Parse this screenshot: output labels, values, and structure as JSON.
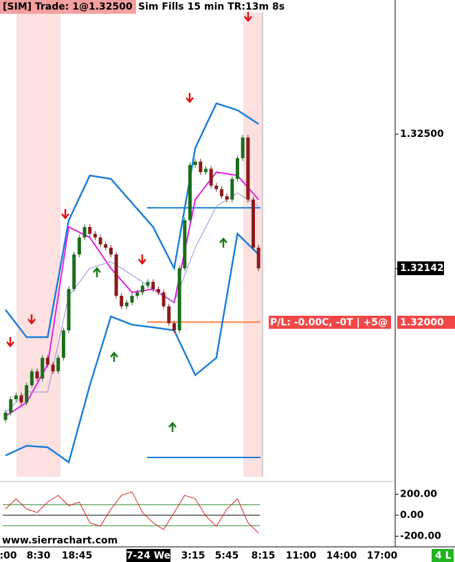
{
  "chart_data": {
    "type": "candlestick",
    "title": "[SIM]  Trade: 1@1.32500",
    "subtitle": "Sim Fills  15 min  TR:13m 8s",
    "watermark": "www.sierrachart.com",
    "status": "4 L",
    "x_labels": [
      ":00",
      "8:30",
      "18:45",
      "7-24 We",
      "3:15",
      "5:45",
      "8:15",
      "11:00",
      "14:00",
      "17:00"
    ],
    "open": [
      1.3174,
      1.31759,
      1.31795,
      1.31805,
      1.31786,
      1.31832,
      1.31869,
      1.3185,
      1.31905,
      1.31887,
      1.31869,
      1.31905,
      1.31978,
      1.32088,
      1.3218,
      1.32225,
      1.32253,
      1.32235,
      1.32225,
      1.32207,
      1.32198,
      1.3218,
      1.3207,
      1.32042,
      1.32052,
      1.3207,
      1.32079,
      1.32097,
      1.32107,
      1.32088,
      1.32079,
      1.32042,
      1.31997,
      1.31978,
      1.32143,
      1.32271,
      1.32418,
      1.32427,
      1.32399,
      1.32408,
      1.32363,
      1.32354,
      1.32335,
      1.32326,
      1.32381,
      1.32436,
      1.32491,
      1.32326,
      1.32198
    ],
    "close": [
      1.31759,
      1.31795,
      1.31805,
      1.31786,
      1.31832,
      1.31869,
      1.3185,
      1.31905,
      1.31887,
      1.31869,
      1.31905,
      1.31978,
      1.32088,
      1.3218,
      1.32225,
      1.32253,
      1.32235,
      1.32225,
      1.32207,
      1.32198,
      1.3218,
      1.3207,
      1.32042,
      1.32052,
      1.3207,
      1.32079,
      1.32097,
      1.32107,
      1.32088,
      1.32079,
      1.32042,
      1.31997,
      1.31978,
      1.32143,
      1.32271,
      1.32418,
      1.32427,
      1.32399,
      1.32408,
      1.32363,
      1.32354,
      1.32335,
      1.32326,
      1.32381,
      1.32436,
      1.32491,
      1.32326,
      1.32198,
      1.32143
    ],
    "up_color": "#1b6e1b",
    "down_color": "#8b1a1a",
    "ylim": [
      1.31585,
      1.32857
    ],
    "yticks": [
      {
        "value": 1.325,
        "label": "1.32500"
      }
    ],
    "last_price": {
      "value": 1.32142,
      "label": "1.32142"
    },
    "position_line": {
      "value": 1.32,
      "label": "1.32000",
      "text": "P/L: -0.00C, -0T | +5@",
      "color": "#ff7f3f"
    },
    "levels": [
      {
        "value": 1.32304,
        "color": "#1a7fd9"
      },
      {
        "value": 1.3164,
        "color": "#1a7fd9"
      }
    ],
    "lines": [
      {
        "color": "#1a7fd9",
        "width": 2.5,
        "x": [
          0,
          4,
          8,
          12,
          16,
          20,
          24,
          28,
          32,
          36,
          40,
          44,
          48
        ],
        "values": [
          1.32033,
          1.3196,
          1.3196,
          1.32271,
          1.3239,
          1.32381,
          1.32317,
          1.32253,
          1.32143,
          1.32463,
          1.32582,
          1.32564,
          1.32527
        ]
      },
      {
        "color": "#1a7fd9",
        "width": 2.5,
        "x": [
          0,
          4,
          8,
          12,
          16,
          20,
          24,
          28,
          32,
          36,
          40,
          44,
          48
        ],
        "values": [
          1.31645,
          1.31671,
          1.31667,
          1.31627,
          1.31832,
          1.32015,
          1.31993,
          1.31986,
          1.31978,
          1.31859,
          1.31905,
          1.32235,
          1.3218
        ]
      },
      {
        "color": "#e020e0",
        "width": 2,
        "x": [
          0,
          4,
          8,
          12,
          16,
          20,
          24,
          28,
          32,
          36,
          40,
          44,
          48
        ],
        "values": [
          1.3175,
          1.31786,
          1.31887,
          1.32253,
          1.32225,
          1.32143,
          1.32079,
          1.32088,
          1.32052,
          1.32326,
          1.32399,
          1.3239,
          1.32326
        ]
      },
      {
        "color": "#9a8ad8",
        "width": 1,
        "x": [
          0,
          4,
          8,
          12,
          16,
          20,
          24,
          28,
          32,
          36,
          40,
          44,
          48
        ],
        "values": [
          1.31759,
          1.31814,
          1.31814,
          1.3207,
          1.32143,
          1.32161,
          1.32125,
          1.32088,
          1.32052,
          1.32198,
          1.32308,
          1.32344,
          1.32308
        ]
      }
    ],
    "oscillator": {
      "ylim": [
        -269,
        289
      ],
      "yticks": [
        {
          "value": 200,
          "label": "200.00"
        },
        {
          "value": 0,
          "label": "0.00"
        },
        {
          "value": -200,
          "label": "-200.00"
        }
      ],
      "levels": [
        {
          "value": 100,
          "color": "#2e8b2e"
        },
        {
          "value": 0,
          "color": "#000000"
        },
        {
          "value": -100,
          "color": "#2e8b2e"
        }
      ],
      "color": "#d42020",
      "x": [
        0,
        2,
        4,
        6,
        8,
        10,
        12,
        14,
        16,
        18,
        20,
        22,
        24,
        26,
        28,
        30,
        32,
        34,
        36,
        38,
        40,
        42,
        44,
        46,
        48
      ],
      "values": [
        59,
        157,
        59,
        26,
        125,
        190,
        92,
        125,
        -72,
        -105,
        59,
        190,
        223,
        26,
        -72,
        -138,
        26,
        190,
        157,
        -7,
        -105,
        59,
        157,
        -72,
        -170
      ]
    }
  }
}
